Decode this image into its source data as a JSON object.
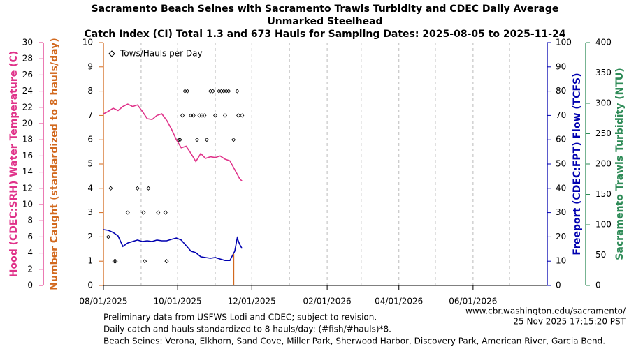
{
  "chart_data": {
    "type": "line",
    "title": [
      "Sacramento Beach Seines with Sacramento Trawls Turbidity and CDEC Daily Average",
      "Unmarked Steelhead",
      "Catch Index (CI) Total 1.3 and 673 Hauls for Sampling Dates: 2025-08-05 to 2025-11-24"
    ],
    "xlim": [
      "2025-08-01",
      "2026-08-01"
    ],
    "xticks": [
      {
        "value": "2025-08-01",
        "label": "08/01/2025"
      },
      {
        "value": "2025-10-01",
        "label": "10/01/2025"
      },
      {
        "value": "2025-12-01",
        "label": "12/01/2025"
      },
      {
        "value": "2026-02-01",
        "label": "02/01/2026"
      },
      {
        "value": "2026-04-01",
        "label": "04/01/2026"
      },
      {
        "value": "2026-06-01",
        "label": "06/01/2026"
      }
    ],
    "xgrid": [
      "2025-09-01",
      "2025-10-01",
      "2025-11-01",
      "2025-12-01",
      "2026-01-01",
      "2026-02-01",
      "2026-03-01",
      "2026-04-01",
      "2026-05-01",
      "2026-06-01",
      "2026-07-01"
    ],
    "axes": [
      {
        "label": "Hood (CDEC:SRH) Water Temperature (C)",
        "color": "#e0338a",
        "lim": [
          0,
          30
        ],
        "ticks": [
          0,
          2,
          4,
          6,
          8,
          10,
          12,
          14,
          16,
          18,
          20,
          22,
          24,
          26,
          28,
          30
        ]
      },
      {
        "label": "Number Caught (standardized to 8 hauls/day)",
        "color": "#d2691e",
        "lim": [
          0,
          10
        ],
        "ticks": [
          0,
          1,
          2,
          3,
          4,
          5,
          6,
          7,
          8,
          9,
          10
        ]
      },
      {
        "label": "Freeport (CDEC:FPT) Flow (TCFS)",
        "color": "#0000b0",
        "lim": [
          0,
          100
        ],
        "ticks": [
          0,
          10,
          20,
          30,
          40,
          50,
          60,
          70,
          80,
          90,
          100
        ]
      },
      {
        "label": "Sacramento Trawls Turbidity (NTU)",
        "color": "#2e8b57",
        "lim": [
          0,
          400
        ],
        "ticks": [
          0,
          50,
          100,
          150,
          200,
          250,
          300,
          350,
          400
        ]
      }
    ],
    "series": [
      {
        "type": "line",
        "axis": 0,
        "color": "#e0338a",
        "x": [
          "2025-08-01",
          "2025-08-05",
          "2025-08-09",
          "2025-08-13",
          "2025-08-17",
          "2025-08-21",
          "2025-08-25",
          "2025-08-29",
          "2025-09-02",
          "2025-09-06",
          "2025-09-10",
          "2025-09-14",
          "2025-09-18",
          "2025-09-22",
          "2025-09-26",
          "2025-09-30",
          "2025-10-04",
          "2025-10-08",
          "2025-10-12",
          "2025-10-16",
          "2025-10-20",
          "2025-10-24",
          "2025-10-28",
          "2025-11-01",
          "2025-11-05",
          "2025-11-09",
          "2025-11-13",
          "2025-11-17",
          "2025-11-21",
          "2025-11-23"
        ],
        "values": [
          21.2,
          21.5,
          21.9,
          21.6,
          22.1,
          22.4,
          22.1,
          22.3,
          21.5,
          20.6,
          20.5,
          21.0,
          21.2,
          20.4,
          19.3,
          18.0,
          17.0,
          17.2,
          16.3,
          15.3,
          16.3,
          15.7,
          15.9,
          15.8,
          16.0,
          15.6,
          15.4,
          14.3,
          13.2,
          12.9
        ]
      },
      {
        "type": "line",
        "axis": 2,
        "color": "#0000b0",
        "x": [
          "2025-08-01",
          "2025-08-05",
          "2025-08-09",
          "2025-08-13",
          "2025-08-17",
          "2025-08-21",
          "2025-08-25",
          "2025-08-29",
          "2025-09-02",
          "2025-09-06",
          "2025-09-10",
          "2025-09-14",
          "2025-09-18",
          "2025-09-22",
          "2025-09-26",
          "2025-09-30",
          "2025-10-04",
          "2025-10-08",
          "2025-10-12",
          "2025-10-16",
          "2025-10-20",
          "2025-10-24",
          "2025-10-28",
          "2025-11-01",
          "2025-11-05",
          "2025-11-09",
          "2025-11-13",
          "2025-11-17",
          "2025-11-19",
          "2025-11-21",
          "2025-11-23"
        ],
        "values": [
          23,
          22.7,
          21.8,
          20.4,
          16.1,
          17.5,
          18.1,
          18.7,
          18.1,
          18.4,
          18.1,
          18.7,
          18.4,
          18.4,
          19,
          19.5,
          18.7,
          16.4,
          14.1,
          13.5,
          11.8,
          11.5,
          11.2,
          11.5,
          10.9,
          10.3,
          10.3,
          14.1,
          19.5,
          17,
          15.2
        ]
      },
      {
        "type": "bar",
        "axis": 1,
        "color": "#d2691e",
        "x": [
          "2025-11-16"
        ],
        "values": [
          1.3
        ]
      },
      {
        "type": "scatter",
        "axis": 1,
        "color": "#000000",
        "name": "Tows/Hauls per Day",
        "x": [
          "2025-08-05",
          "2025-08-07",
          "2025-08-10",
          "2025-08-11",
          "2025-08-21",
          "2025-08-29",
          "2025-09-03",
          "2025-09-04",
          "2025-09-07",
          "2025-09-15",
          "2025-09-21",
          "2025-09-22",
          "2025-10-02",
          "2025-10-03",
          "2025-10-05",
          "2025-10-07",
          "2025-10-09",
          "2025-10-12",
          "2025-10-14",
          "2025-10-17",
          "2025-10-19",
          "2025-10-21",
          "2025-10-23",
          "2025-10-25",
          "2025-10-28",
          "2025-10-30",
          "2025-11-01",
          "2025-11-04",
          "2025-11-06",
          "2025-11-08",
          "2025-11-09",
          "2025-11-10",
          "2025-11-12",
          "2025-11-16",
          "2025-11-19",
          "2025-11-20",
          "2025-11-23"
        ],
        "values": [
          2,
          4,
          1,
          1,
          3,
          4,
          3,
          1,
          4,
          3,
          3,
          1,
          6,
          6,
          7,
          8,
          8,
          7,
          7,
          6,
          7,
          7,
          7,
          6,
          8,
          8,
          7,
          8,
          8,
          8,
          7,
          8,
          8,
          6,
          8,
          7,
          7
        ]
      }
    ],
    "notes": [
      "Preliminary data from USFWS Lodi and CDEC; subject to revision.",
      "Daily catch and hauls standardized to 8 hauls/day: (#fish/#hauls)*8.",
      "Beach Seines: Verona, Elkhorn, Sand Cove, Miller Park, Sherwood Harbor, Discovery Park, American River, Garcia Bend."
    ],
    "source": "www.cbr.washington.edu/sacramento/",
    "timestamp": "25 Nov 2025 17:15:20 PST"
  }
}
